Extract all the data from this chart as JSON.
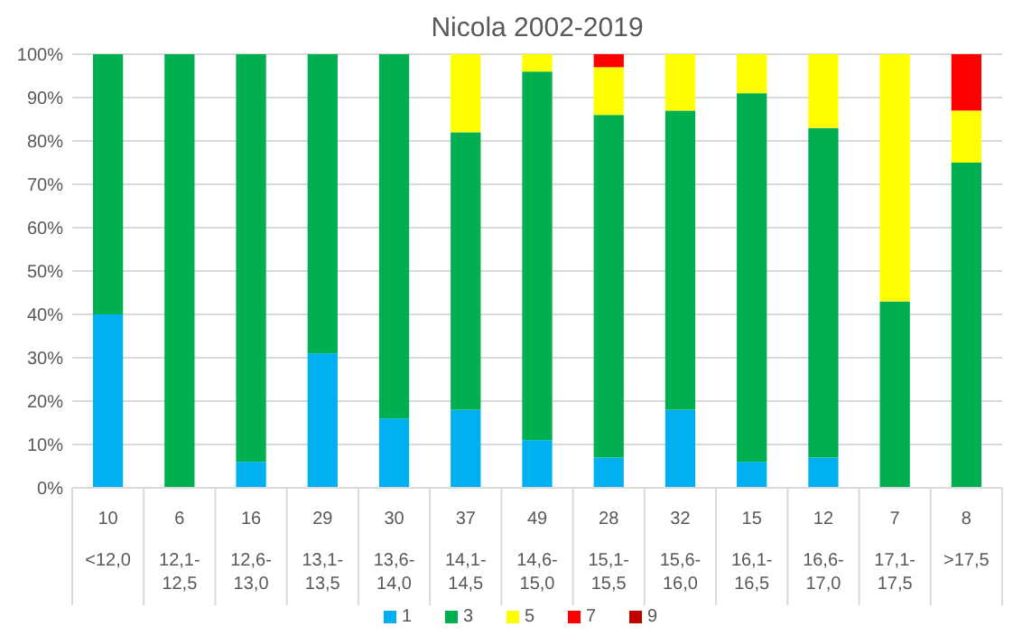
{
  "chart_data": {
    "type": "bar",
    "title": "Nicola 2002-2019",
    "stacked": true,
    "categories": [
      "<12,0",
      "12,1-12,5",
      "12,6-13,0",
      "13,1-13,5",
      "13,6-14,0",
      "14,1-14,5",
      "14,6-15,0",
      "15,1-15,5",
      "15,6-16,0",
      "16,1-16,5",
      "16,6-17,0",
      "17,1-17,5",
      ">17,5"
    ],
    "annotations": [
      "10",
      "6",
      "16",
      "29",
      "30",
      "37",
      "49",
      "28",
      "32",
      "15",
      "12",
      "7",
      "8"
    ],
    "series": [
      {
        "name": "1",
        "color": "#00b0f0",
        "values": [
          40,
          0,
          6,
          31,
          16,
          18,
          11,
          7,
          18,
          6,
          7,
          0,
          0
        ]
      },
      {
        "name": "3",
        "color": "#00b050",
        "values": [
          60,
          100,
          94,
          69,
          84,
          64,
          85,
          79,
          69,
          85,
          76,
          43,
          75
        ]
      },
      {
        "name": "5",
        "color": "#ffff00",
        "values": [
          0,
          0,
          0,
          0,
          0,
          18,
          4,
          11,
          13,
          9,
          17,
          57,
          12
        ]
      },
      {
        "name": "7",
        "color": "#ff0000",
        "values": [
          0,
          0,
          0,
          0,
          0,
          0,
          0,
          3,
          0,
          0,
          0,
          0,
          13
        ]
      },
      {
        "name": "9",
        "color": "#c00000",
        "values": [
          0,
          0,
          0,
          0,
          0,
          0,
          0,
          0,
          0,
          0,
          0,
          0,
          0
        ]
      }
    ],
    "ylim": [
      0,
      100
    ],
    "yticks": [
      {
        "value": 0,
        "label": "0%"
      },
      {
        "value": 10,
        "label": "10%"
      },
      {
        "value": 20,
        "label": "20%"
      },
      {
        "value": 30,
        "label": "30%"
      },
      {
        "value": 40,
        "label": "40%"
      },
      {
        "value": 50,
        "label": "50%"
      },
      {
        "value": 60,
        "label": "60%"
      },
      {
        "value": 70,
        "label": "70%"
      },
      {
        "value": 80,
        "label": "80%"
      },
      {
        "value": 90,
        "label": "90%"
      },
      {
        "value": 100,
        "label": "100%"
      }
    ],
    "grid": "y",
    "legend": "bottom"
  }
}
